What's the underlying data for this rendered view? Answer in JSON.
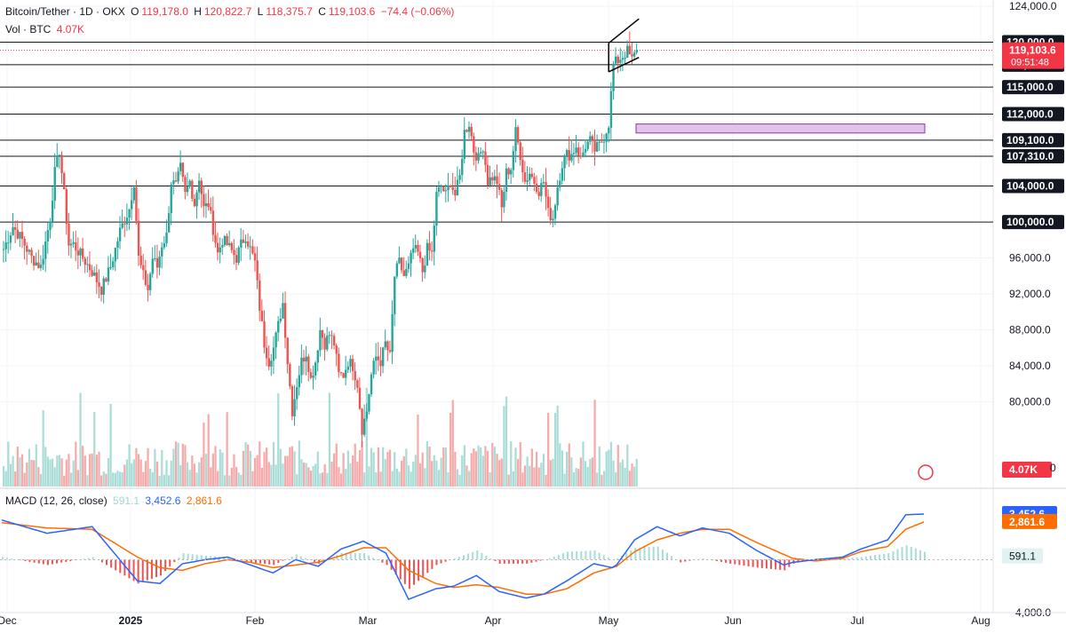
{
  "header": {
    "symbol": "Bitcoin/Tether · 1D · OKX",
    "open_label": "O",
    "open": "119,178.0",
    "high_label": "H",
    "high": "120,822.7",
    "low_label": "L",
    "low": "118,375.7",
    "close_label": "C",
    "close": "119,103.6",
    "change": "−74.4 (−0.06%)",
    "vol_label": "Vol · BTC",
    "vol": "4.07K"
  },
  "macd_header": {
    "label": "MACD (12, 26, close)",
    "hist": "591.1",
    "macd": "3,452.6",
    "signal": "2,861.6"
  },
  "colors": {
    "up": "#26a69a",
    "down": "#ef5350",
    "up_vol": "#a8dcd6",
    "down_vol": "#f7a8a8",
    "macd_line": "#2962ff",
    "signal_line": "#ff6d00",
    "zone": "#e1bee7",
    "zone_border": "#7b1fa2",
    "grid": "#f0f3fa",
    "text": "#131722",
    "level_line": "#131722"
  },
  "chart_data": [
    {
      "type": "candlestick",
      "title": "Bitcoin/Tether · 1D · OKX",
      "y_scale": "linear",
      "ylim": [
        77000,
        124000
      ],
      "y_ticks": [
        "124,000.0",
        "120,000.0",
        "117,500.0",
        "115,000.0",
        "112,000.0",
        "109,100.0",
        "107,310.0",
        "104,000.0",
        "100,000.0",
        "96,000.0",
        "92,000.0",
        "88,000.0",
        "84,000.0",
        "80,000.0"
      ],
      "x_ticks": [
        "Dec",
        "2025",
        "Feb",
        "Mar",
        "Apr",
        "May",
        "Jun",
        "Jul",
        "Aug"
      ],
      "horizontal_levels": [
        120000,
        117500,
        115000,
        112000,
        109100,
        107310,
        104000,
        100000
      ],
      "resistance_zone": {
        "from": 109900,
        "to": 110900
      },
      "channel": {
        "upper": [
          119900,
          122600
        ],
        "lower": [
          116700,
          118300
        ]
      },
      "last_price": "119,103.6",
      "countdown": "09:51:48",
      "anchors": [
        [
          0,
          97000
        ],
        [
          4,
          99500
        ],
        [
          8,
          98000
        ],
        [
          12,
          96000
        ],
        [
          16,
          95000
        ],
        [
          20,
          100500
        ],
        [
          22,
          105500
        ],
        [
          24,
          108000
        ],
        [
          26,
          103000
        ],
        [
          28,
          97500
        ],
        [
          30,
          97500
        ],
        [
          34,
          96000
        ],
        [
          38,
          94500
        ],
        [
          42,
          92500
        ],
        [
          46,
          95000
        ],
        [
          50,
          99000
        ],
        [
          54,
          101500
        ],
        [
          56,
          104500
        ],
        [
          58,
          96000
        ],
        [
          60,
          94000
        ],
        [
          62,
          92500
        ],
        [
          64,
          96000
        ],
        [
          66,
          95000
        ],
        [
          68,
          97500
        ],
        [
          70,
          98500
        ],
        [
          72,
          104500
        ],
        [
          74,
          104000
        ],
        [
          76,
          106000
        ],
        [
          78,
          103000
        ],
        [
          80,
          104500
        ],
        [
          82,
          102000
        ],
        [
          84,
          105000
        ],
        [
          86,
          101500
        ],
        [
          88,
          102000
        ],
        [
          92,
          96500
        ],
        [
          94,
          98000
        ],
        [
          96,
          97500
        ],
        [
          100,
          96000
        ],
        [
          102,
          97500
        ],
        [
          104,
          98500
        ],
        [
          108,
          95500
        ],
        [
          110,
          90500
        ],
        [
          112,
          86500
        ],
        [
          114,
          84500
        ],
        [
          116,
          86000
        ],
        [
          118,
          88500
        ],
        [
          120,
          91000
        ],
        [
          122,
          84500
        ],
        [
          124,
          79000
        ],
        [
          126,
          82000
        ],
        [
          128,
          84500
        ],
        [
          130,
          85500
        ],
        [
          132,
          82500
        ],
        [
          134,
          84500
        ],
        [
          136,
          88000
        ],
        [
          138,
          86500
        ],
        [
          140,
          87500
        ],
        [
          142,
          86500
        ],
        [
          144,
          83000
        ],
        [
          146,
          83000
        ],
        [
          148,
          84500
        ],
        [
          150,
          84000
        ],
        [
          152,
          82000
        ],
        [
          154,
          77000
        ],
        [
          156,
          79000
        ],
        [
          158,
          83000
        ],
        [
          160,
          85000
        ],
        [
          162,
          84500
        ],
        [
          164,
          86500
        ],
        [
          166,
          85000
        ],
        [
          168,
          94000
        ],
        [
          170,
          95500
        ],
        [
          172,
          94000
        ],
        [
          174,
          95000
        ],
        [
          176,
          97000
        ],
        [
          178,
          96500
        ],
        [
          180,
          94500
        ],
        [
          182,
          97000
        ],
        [
          184,
          96500
        ],
        [
          186,
          103000
        ],
        [
          188,
          104000
        ],
        [
          190,
          103000
        ],
        [
          192,
          104500
        ],
        [
          194,
          103000
        ],
        [
          196,
          105000
        ],
        [
          198,
          110000
        ],
        [
          200,
          111000
        ],
        [
          202,
          108000
        ],
        [
          204,
          107000
        ],
        [
          206,
          108500
        ],
        [
          208,
          104500
        ],
        [
          210,
          105000
        ],
        [
          212,
          104500
        ],
        [
          214,
          101500
        ],
        [
          216,
          105500
        ],
        [
          218,
          106000
        ],
        [
          220,
          110000
        ],
        [
          222,
          107500
        ],
        [
          224,
          104500
        ],
        [
          226,
          105500
        ],
        [
          228,
          104500
        ],
        [
          230,
          103500
        ],
        [
          232,
          104500
        ],
        [
          234,
          101000
        ],
        [
          236,
          100500
        ],
        [
          238,
          104000
        ],
        [
          240,
          106500
        ],
        [
          242,
          107500
        ],
        [
          244,
          107500
        ],
        [
          246,
          108500
        ],
        [
          248,
          107000
        ],
        [
          250,
          108500
        ],
        [
          252,
          109000
        ],
        [
          254,
          108000
        ],
        [
          256,
          108500
        ],
        [
          258,
          109500
        ],
        [
          260,
          111000
        ],
        [
          262,
          117500
        ],
        [
          264,
          118000
        ],
        [
          266,
          118500
        ],
        [
          268,
          119000
        ],
        [
          270,
          118000
        ],
        [
          272,
          119100
        ]
      ],
      "volume_ylim": [
        0,
        30
      ]
    },
    {
      "type": "macd",
      "title": "MACD (12, 26, close)",
      "ylim": [
        -4000,
        5000
      ],
      "y_ticks": [
        "−4,000.0",
        "0.0"
      ],
      "macd_anchors": [
        [
          0,
          3000
        ],
        [
          20,
          2000
        ],
        [
          40,
          2500
        ],
        [
          60,
          -1600
        ],
        [
          70,
          -1800
        ],
        [
          80,
          -300
        ],
        [
          90,
          0
        ],
        [
          100,
          200
        ],
        [
          110,
          -400
        ],
        [
          120,
          -1000
        ],
        [
          130,
          0
        ],
        [
          140,
          -500
        ],
        [
          150,
          800
        ],
        [
          160,
          1400
        ],
        [
          170,
          500
        ],
        [
          180,
          -3000
        ],
        [
          192,
          -2200
        ],
        [
          200,
          -2000
        ],
        [
          210,
          -1200
        ],
        [
          220,
          -2400
        ],
        [
          232,
          -2900
        ],
        [
          240,
          -2600
        ],
        [
          250,
          -1600
        ],
        [
          262,
          -300
        ],
        [
          270,
          -600
        ],
        [
          272,
          -400
        ],
        [
          280,
          1500
        ],
        [
          290,
          2500
        ],
        [
          300,
          1800
        ],
        [
          310,
          2400
        ],
        [
          322,
          2000
        ],
        [
          334,
          700
        ],
        [
          346,
          -400
        ],
        [
          350,
          -200
        ],
        [
          360,
          0
        ],
        [
          372,
          200
        ],
        [
          380,
          800
        ],
        [
          392,
          1500
        ],
        [
          400,
          3400
        ],
        [
          408,
          3452.6
        ]
      ],
      "signal_anchors": [
        [
          0,
          2800
        ],
        [
          20,
          2400
        ],
        [
          40,
          2300
        ],
        [
          60,
          200
        ],
        [
          70,
          -600
        ],
        [
          80,
          -800
        ],
        [
          90,
          -300
        ],
        [
          100,
          0
        ],
        [
          110,
          -200
        ],
        [
          120,
          -600
        ],
        [
          130,
          -400
        ],
        [
          140,
          -200
        ],
        [
          150,
          300
        ],
        [
          160,
          900
        ],
        [
          170,
          900
        ],
        [
          180,
          -800
        ],
        [
          192,
          -1800
        ],
        [
          200,
          -2100
        ],
        [
          210,
          -1900
        ],
        [
          220,
          -2100
        ],
        [
          232,
          -2600
        ],
        [
          240,
          -2600
        ],
        [
          250,
          -2200
        ],
        [
          262,
          -1000
        ],
        [
          270,
          -600
        ],
        [
          272,
          -500
        ],
        [
          280,
          600
        ],
        [
          290,
          1500
        ],
        [
          300,
          2000
        ],
        [
          310,
          2300
        ],
        [
          322,
          2300
        ],
        [
          334,
          1300
        ],
        [
          346,
          400
        ],
        [
          350,
          100
        ],
        [
          360,
          -100
        ],
        [
          372,
          100
        ],
        [
          380,
          600
        ],
        [
          392,
          1000
        ],
        [
          400,
          2300
        ],
        [
          408,
          2861.6
        ]
      ],
      "hist_last": 591.1
    }
  ]
}
